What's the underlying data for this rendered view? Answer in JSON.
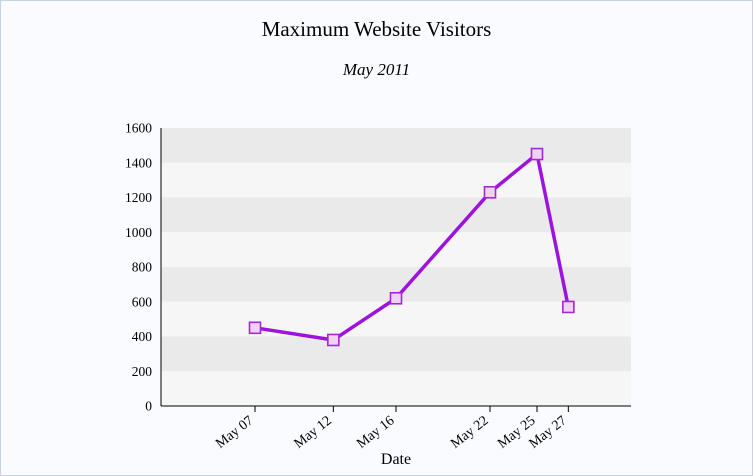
{
  "chart": {
    "title": "Maximum Website Visitors",
    "subtitle": "May 2011",
    "xlabel": "Date"
  },
  "chart_data": {
    "type": "line",
    "title": "Maximum Website Visitors",
    "subtitle": "May 2011",
    "xlabel": "Date",
    "ylabel": "",
    "categories": [
      "May 07",
      "May 12",
      "May 16",
      "May 22",
      "May 25",
      "May 27"
    ],
    "x_days": [
      7,
      12,
      16,
      22,
      25,
      27
    ],
    "values": [
      450,
      380,
      620,
      1230,
      1450,
      570
    ],
    "ylim": [
      0,
      1600
    ],
    "ytick_step": 200,
    "x_domain_days": [
      1,
      31
    ],
    "grid": "horizontal-bands",
    "legend": "none",
    "colors": {
      "line": "#9d13dd",
      "marker_fill": "#f0d2f7",
      "marker_stroke": "#a428d8",
      "band_dark": "#eaeaea",
      "band_light": "#f6f6f6",
      "axis": "#000000",
      "text": "#000000",
      "page_background": "#fafbff"
    }
  }
}
